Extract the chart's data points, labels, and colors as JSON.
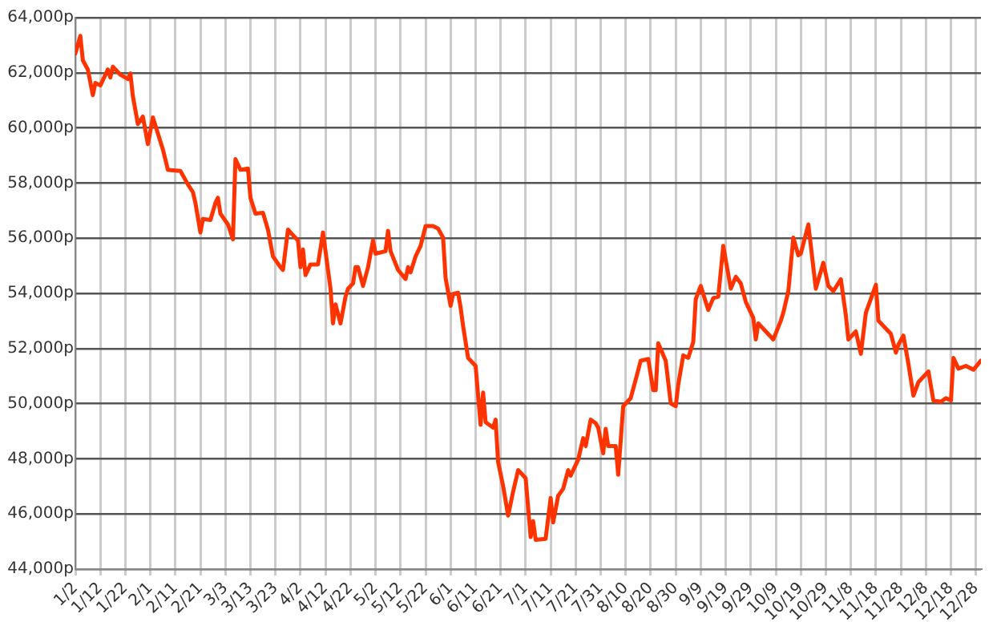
{
  "chart_data": {
    "type": "line",
    "x": [
      "--01-02",
      "--01-04",
      "--01-05",
      "--01-07",
      "--01-09",
      "--01-10",
      "--01-12",
      "--01-15",
      "--01-16",
      "--01-17",
      "--01-20",
      "--01-23",
      "--01-24",
      "--01-25",
      "--01-27",
      "--01-29",
      "--01-31",
      "--02-02",
      "--02-05",
      "--02-06",
      "--02-08",
      "--02-13",
      "--02-16",
      "--02-18",
      "--02-19",
      "--02-21",
      "--02-22",
      "--02-25",
      "--02-27",
      "--02-28",
      "--03-01",
      "--03-04",
      "--03-06",
      "--03-07",
      "--03-09",
      "--03-12",
      "--03-13",
      "--03-15",
      "--03-18",
      "--03-20",
      "--03-22",
      "--03-25",
      "--03-26",
      "--03-28",
      "--03-30",
      "--04-01",
      "--04-02",
      "--04-03",
      "--04-04",
      "--04-06",
      "--04-09",
      "--04-11",
      "--04-12",
      "--04-14",
      "--04-15",
      "--04-16",
      "--04-18",
      "--04-20",
      "--04-21",
      "--04-23",
      "--04-24",
      "--04-25",
      "--04-27",
      "--04-29",
      "--05-01",
      "--05-02",
      "--05-06",
      "--05-07",
      "--05-08",
      "--05-11",
      "--05-14",
      "--05-15",
      "--05-16",
      "--05-18",
      "--05-20",
      "--05-22",
      "--05-25",
      "--05-27",
      "--05-29",
      "--05-30",
      "--06-01",
      "--06-02",
      "--06-04",
      "--06-05",
      "--06-06",
      "--06-08",
      "--06-11",
      "--06-13",
      "--06-14",
      "--06-15",
      "--06-18",
      "--06-19",
      "--06-20",
      "--06-22",
      "--06-24",
      "--06-26",
      "--06-28",
      "--07-01",
      "--07-03",
      "--07-04",
      "--07-05",
      "--07-09",
      "--07-11",
      "--07-12",
      "--07-14",
      "--07-16",
      "--07-18",
      "--07-19",
      "--07-22",
      "--07-24",
      "--07-25",
      "--07-27",
      "--07-29",
      "--07-30",
      "--08-01",
      "--08-02",
      "--08-03",
      "--08-06",
      "--08-07",
      "--08-09",
      "--08-12",
      "--08-14",
      "--08-16",
      "--08-19",
      "--08-21",
      "--08-22",
      "--08-23",
      "--08-26",
      "--08-28",
      "--08-30",
      "--08-31",
      "--09-02",
      "--09-04",
      "--09-06",
      "--09-07",
      "--09-09",
      "--09-12",
      "--09-14",
      "--09-16",
      "--09-18",
      "--09-21",
      "--09-23",
      "--09-25",
      "--09-27",
      "--09-30",
      "--10-01",
      "--10-02",
      "--10-05",
      "--10-08",
      "--10-11",
      "--10-12",
      "--10-14",
      "--10-16",
      "--10-18",
      "--10-19",
      "--10-22",
      "--10-25",
      "--10-28",
      "--10-30",
      "--11-01",
      "--11-04",
      "--11-06",
      "--11-07",
      "--11-10",
      "--11-12",
      "--11-14",
      "--11-18",
      "--11-19",
      "--11-22",
      "--11-24",
      "--11-26",
      "--11-27",
      "--11-29",
      "--12-01",
      "--12-03",
      "--12-05",
      "--12-09",
      "--12-11",
      "--12-14",
      "--12-16",
      "--12-18",
      "--12-19",
      "--12-21",
      "--12-24",
      "--12-27",
      "--12-30"
    ],
    "series": [
      {
        "color": "#ff3300",
        "values": [
          62700,
          63340,
          62450,
          62120,
          61190,
          61630,
          61540,
          62120,
          61830,
          62220,
          61930,
          61770,
          61980,
          61150,
          60140,
          60410,
          59410,
          60380,
          59510,
          59220,
          58480,
          58440,
          57950,
          57670,
          57280,
          56210,
          56700,
          56660,
          57280,
          57470,
          56890,
          56500,
          55960,
          58870,
          58480,
          58530,
          57470,
          56890,
          56920,
          56310,
          55340,
          54950,
          54850,
          56310,
          56110,
          55920,
          54950,
          55590,
          54660,
          55050,
          55050,
          56210,
          55530,
          54170,
          52910,
          53600,
          52910,
          53880,
          54170,
          54360,
          54950,
          54950,
          54270,
          54950,
          55920,
          55440,
          55530,
          56270,
          55530,
          54850,
          54520,
          54950,
          54760,
          55340,
          55720,
          56440,
          56440,
          56350,
          56020,
          54560,
          53550,
          53980,
          54020,
          53490,
          52820,
          51660,
          51370,
          49230,
          50400,
          49330,
          49130,
          49420,
          47880,
          47010,
          45940,
          46810,
          47590,
          47300,
          45160,
          45740,
          45060,
          45100,
          46580,
          45690,
          46660,
          46910,
          47590,
          47390,
          47970,
          48750,
          48460,
          49420,
          49290,
          49130,
          48200,
          49090,
          48460,
          48460,
          47420,
          49910,
          50200,
          50870,
          51560,
          51620,
          50490,
          50490,
          52190,
          51550,
          50010,
          49910,
          50690,
          51750,
          51660,
          52240,
          53790,
          54270,
          53400,
          53830,
          53880,
          55720,
          54170,
          54600,
          54360,
          53690,
          53110,
          52330,
          52910,
          52620,
          52330,
          53010,
          53300,
          54080,
          56020,
          55380,
          55440,
          56500,
          54170,
          55110,
          54270,
          54080,
          54510,
          53200,
          52330,
          52620,
          51810,
          53300,
          54310,
          53010,
          52720,
          52530,
          51850,
          52140,
          52470,
          51450,
          50290,
          50780,
          51170,
          50110,
          50070,
          50200,
          50110,
          51660,
          51270,
          51370,
          51230,
          51560
        ]
      }
    ],
    "xlim": [
      "--01-02",
      "--12-30"
    ],
    "xticks": [
      {
        "value": "--01-02",
        "label": "1/2"
      },
      {
        "value": "--01-12",
        "label": "1/12"
      },
      {
        "value": "--01-22",
        "label": "1/22"
      },
      {
        "value": "--02-01",
        "label": "2/1"
      },
      {
        "value": "--02-11",
        "label": "2/11"
      },
      {
        "value": "--02-21",
        "label": "2/21"
      },
      {
        "value": "--03-03",
        "label": "3/3"
      },
      {
        "value": "--03-13",
        "label": "3/13"
      },
      {
        "value": "--03-23",
        "label": "3/23"
      },
      {
        "value": "--04-02",
        "label": "4/2"
      },
      {
        "value": "--04-12",
        "label": "4/12"
      },
      {
        "value": "--04-22",
        "label": "4/22"
      },
      {
        "value": "--05-02",
        "label": "5/2"
      },
      {
        "value": "--05-12",
        "label": "5/12"
      },
      {
        "value": "--05-22",
        "label": "5/22"
      },
      {
        "value": "--06-01",
        "label": "6/1"
      },
      {
        "value": "--06-11",
        "label": "6/11"
      },
      {
        "value": "--06-21",
        "label": "6/21"
      },
      {
        "value": "--07-01",
        "label": "7/1"
      },
      {
        "value": "--07-11",
        "label": "7/11"
      },
      {
        "value": "--07-21",
        "label": "7/21"
      },
      {
        "value": "--07-31",
        "label": "7/31"
      },
      {
        "value": "--08-10",
        "label": "8/10"
      },
      {
        "value": "--08-20",
        "label": "8/20"
      },
      {
        "value": "--08-30",
        "label": "8/30"
      },
      {
        "value": "--09-09",
        "label": "9/9"
      },
      {
        "value": "--09-19",
        "label": "9/19"
      },
      {
        "value": "--09-29",
        "label": "9/29"
      },
      {
        "value": "--10-09",
        "label": "10/9"
      },
      {
        "value": "--10-19",
        "label": "10/19"
      },
      {
        "value": "--10-29",
        "label": "10/29"
      },
      {
        "value": "--11-08",
        "label": "11/8"
      },
      {
        "value": "--11-18",
        "label": "11/18"
      },
      {
        "value": "--11-28",
        "label": "11/28"
      },
      {
        "value": "--12-08",
        "label": "12/8"
      },
      {
        "value": "--12-18",
        "label": "12/18"
      },
      {
        "value": "--12-28",
        "label": "12/28"
      }
    ],
    "ylim": [
      44000,
      64000
    ],
    "yticks": [
      {
        "value": 44000,
        "label": "44,000p"
      },
      {
        "value": 46000,
        "label": "46,000p"
      },
      {
        "value": 48000,
        "label": "48,000p"
      },
      {
        "value": 50000,
        "label": "50,000p"
      },
      {
        "value": 52000,
        "label": "52,000p"
      },
      {
        "value": 54000,
        "label": "54,000p"
      },
      {
        "value": 56000,
        "label": "56,000p"
      },
      {
        "value": 58000,
        "label": "58,000p"
      },
      {
        "value": 60000,
        "label": "60,000p"
      },
      {
        "value": 62000,
        "label": "62,000p"
      },
      {
        "value": 64000,
        "label": "64,000p"
      }
    ],
    "grid": true,
    "legend": false,
    "marker": "none",
    "line_style": "solid"
  }
}
